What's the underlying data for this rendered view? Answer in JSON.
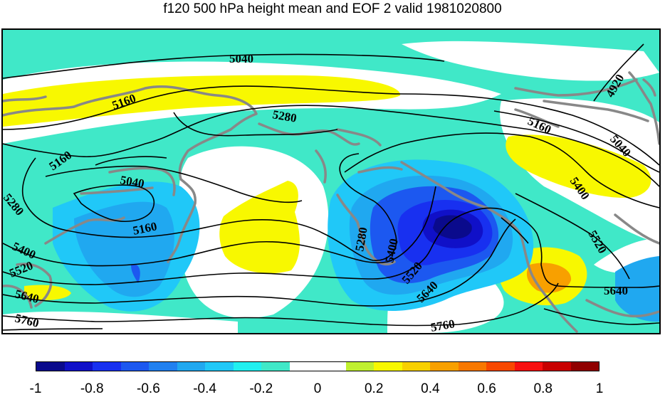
{
  "title": "f120 500 hPa height mean and EOF 2 valid 1981020800",
  "contour_labels": [
    "5040",
    "5160",
    "5280",
    "4920",
    "5160",
    "5040",
    "5400",
    "5520",
    "5160",
    "5040",
    "5280",
    "5160",
    "5400",
    "5520",
    "5640",
    "5760",
    "5280",
    "5400",
    "5520",
    "5640",
    "5760",
    "5640"
  ],
  "colorbar": {
    "colors": [
      "#0a0a8c",
      "#1010c8",
      "#1830f0",
      "#1c58f0",
      "#2080f0",
      "#20a8f0",
      "#20c8f8",
      "#20f0f0",
      "#40e8c8",
      "#ffffff",
      "#ffffff",
      "#c0f030",
      "#f8f800",
      "#f8d000",
      "#f8a000",
      "#f87800",
      "#f84800",
      "#f81010",
      "#c80000",
      "#900000"
    ],
    "tick_labels": [
      "-1",
      "-0.8",
      "-0.6",
      "-0.4",
      "-0.2",
      "0",
      "0.2",
      "0.4",
      "0.6",
      "0.8",
      "1"
    ]
  }
}
